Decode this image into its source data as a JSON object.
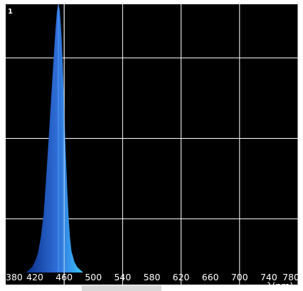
{
  "chart_data": {
    "type": "area",
    "title": "",
    "xlabel": "λ(nm)",
    "ylabel": "",
    "xlim": [
      380,
      780
    ],
    "ylim": [
      0,
      1
    ],
    "x_ticks": [
      "380",
      "420",
      "460",
      "500",
      "540",
      "580",
      "620",
      "660",
      "700",
      "740",
      "780"
    ],
    "y_ticks": [
      "1"
    ],
    "grid": true,
    "background": "#000000",
    "grid_color": "#ffffff",
    "series": [
      {
        "name": "",
        "x": [
          408,
          412,
          416,
          420,
          424,
          428,
          432,
          436,
          440,
          444,
          448,
          450,
          452,
          454,
          456,
          458,
          460,
          462,
          464,
          466,
          468,
          470,
          474,
          478,
          482,
          486
        ],
        "y": [
          0.0,
          0.01,
          0.02,
          0.04,
          0.07,
          0.13,
          0.22,
          0.38,
          0.55,
          0.73,
          0.9,
          0.97,
          1.0,
          0.98,
          0.9,
          0.78,
          0.62,
          0.46,
          0.32,
          0.21,
          0.13,
          0.08,
          0.04,
          0.02,
          0.01,
          0.0
        ],
        "peak_nm": 452,
        "color_left": "#0a2f8a",
        "color_mid": "#2f6fd8",
        "color_right": "#3cc6ff"
      }
    ]
  }
}
